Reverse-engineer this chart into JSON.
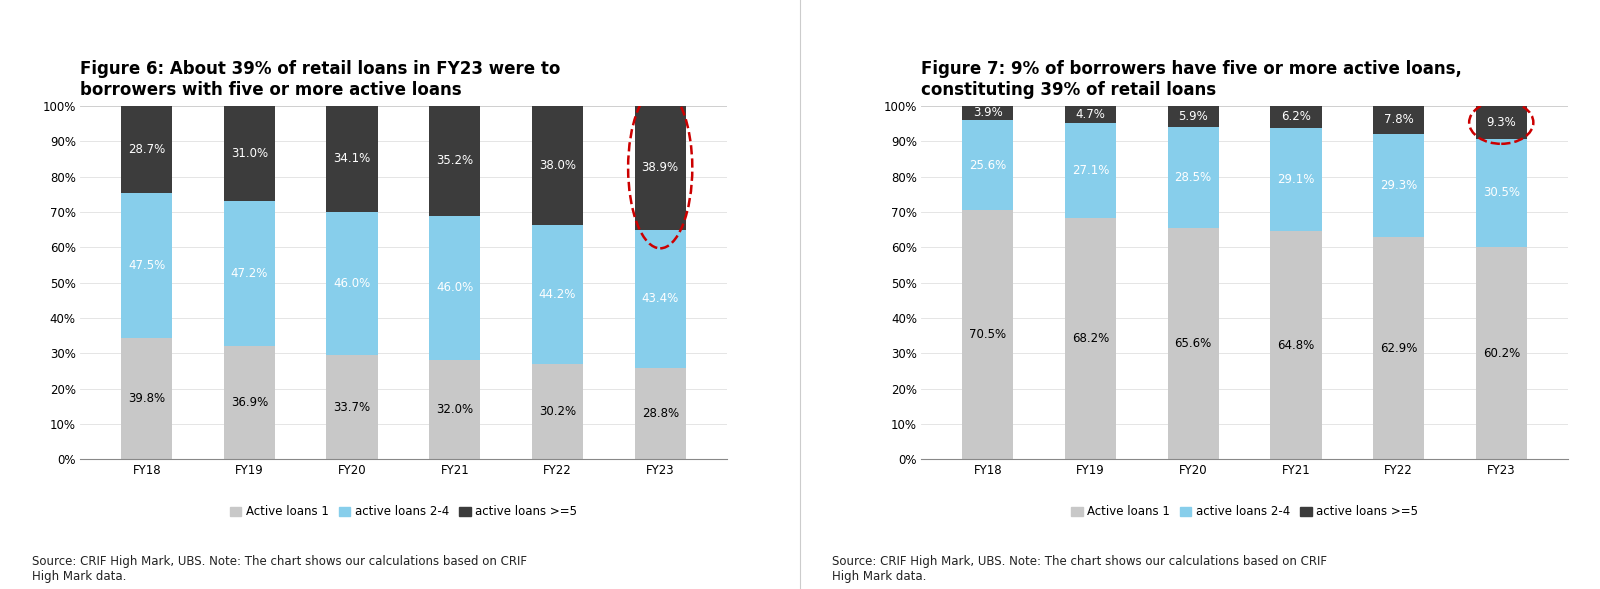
{
  "fig6_title": "Figure 6: About 39% of retail loans in FY23 were to\nborrowers with five or more active loans",
  "fig7_title": "Figure 7: 9% of borrowers have five or more active loans,\nconstituting 39% of retail loans",
  "categories": [
    "FY18",
    "FY19",
    "FY20",
    "FY21",
    "FY22",
    "FY23"
  ],
  "fig6_labels": {
    "active1": [
      39.8,
      36.9,
      33.7,
      32.0,
      30.2,
      28.8
    ],
    "active2_4": [
      47.5,
      47.2,
      46.0,
      46.0,
      44.2,
      43.4
    ],
    "active5p": [
      28.7,
      31.0,
      34.1,
      35.2,
      38.0,
      38.9
    ]
  },
  "fig7_labels": {
    "active1": [
      70.5,
      68.2,
      65.6,
      64.8,
      62.9,
      60.2
    ],
    "active2_4": [
      25.6,
      27.1,
      28.5,
      29.1,
      29.3,
      30.5
    ],
    "active5p": [
      3.9,
      4.7,
      5.9,
      6.2,
      7.8,
      9.3
    ]
  },
  "color_active1": "#c8c8c8",
  "color_active2_4": "#87CEEB",
  "color_active5p": "#3c3c3c",
  "legend_labels": [
    "Active loans 1",
    "active loans 2-4",
    "active loans >=5"
  ],
  "source_text": "Source: CRIF High Mark, UBS. Note: The chart shows our calculations based on CRIF\nHigh Mark data.",
  "bar_width": 0.5,
  "ylim": [
    0,
    100
  ],
  "yticks": [
    0,
    10,
    20,
    30,
    40,
    50,
    60,
    70,
    80,
    90,
    100
  ],
  "ytick_labels": [
    "0%",
    "10%",
    "20%",
    "30%",
    "40%",
    "50%",
    "60%",
    "70%",
    "80%",
    "90%",
    "100%"
  ],
  "circle_color": "#cc0000",
  "background_color": "#ffffff",
  "title_fontsize": 12,
  "label_fontsize": 8.5,
  "tick_fontsize": 8.5,
  "legend_fontsize": 8.5,
  "source_fontsize": 8.5
}
